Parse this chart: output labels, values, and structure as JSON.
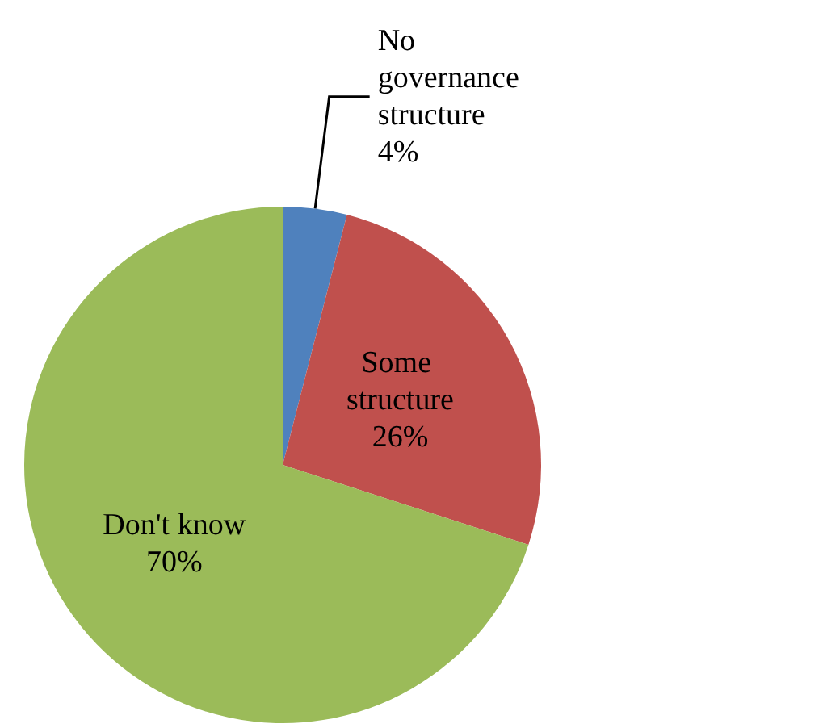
{
  "chart_data": {
    "type": "pie",
    "categories": [
      "No governance structure",
      "Some structure",
      "Don't know"
    ],
    "values": [
      4,
      26,
      70
    ],
    "value_labels": [
      "4%",
      "26%",
      "70%"
    ],
    "colors": [
      "#4f81bd",
      "#c0504d",
      "#9bbb59"
    ],
    "legend": false
  }
}
